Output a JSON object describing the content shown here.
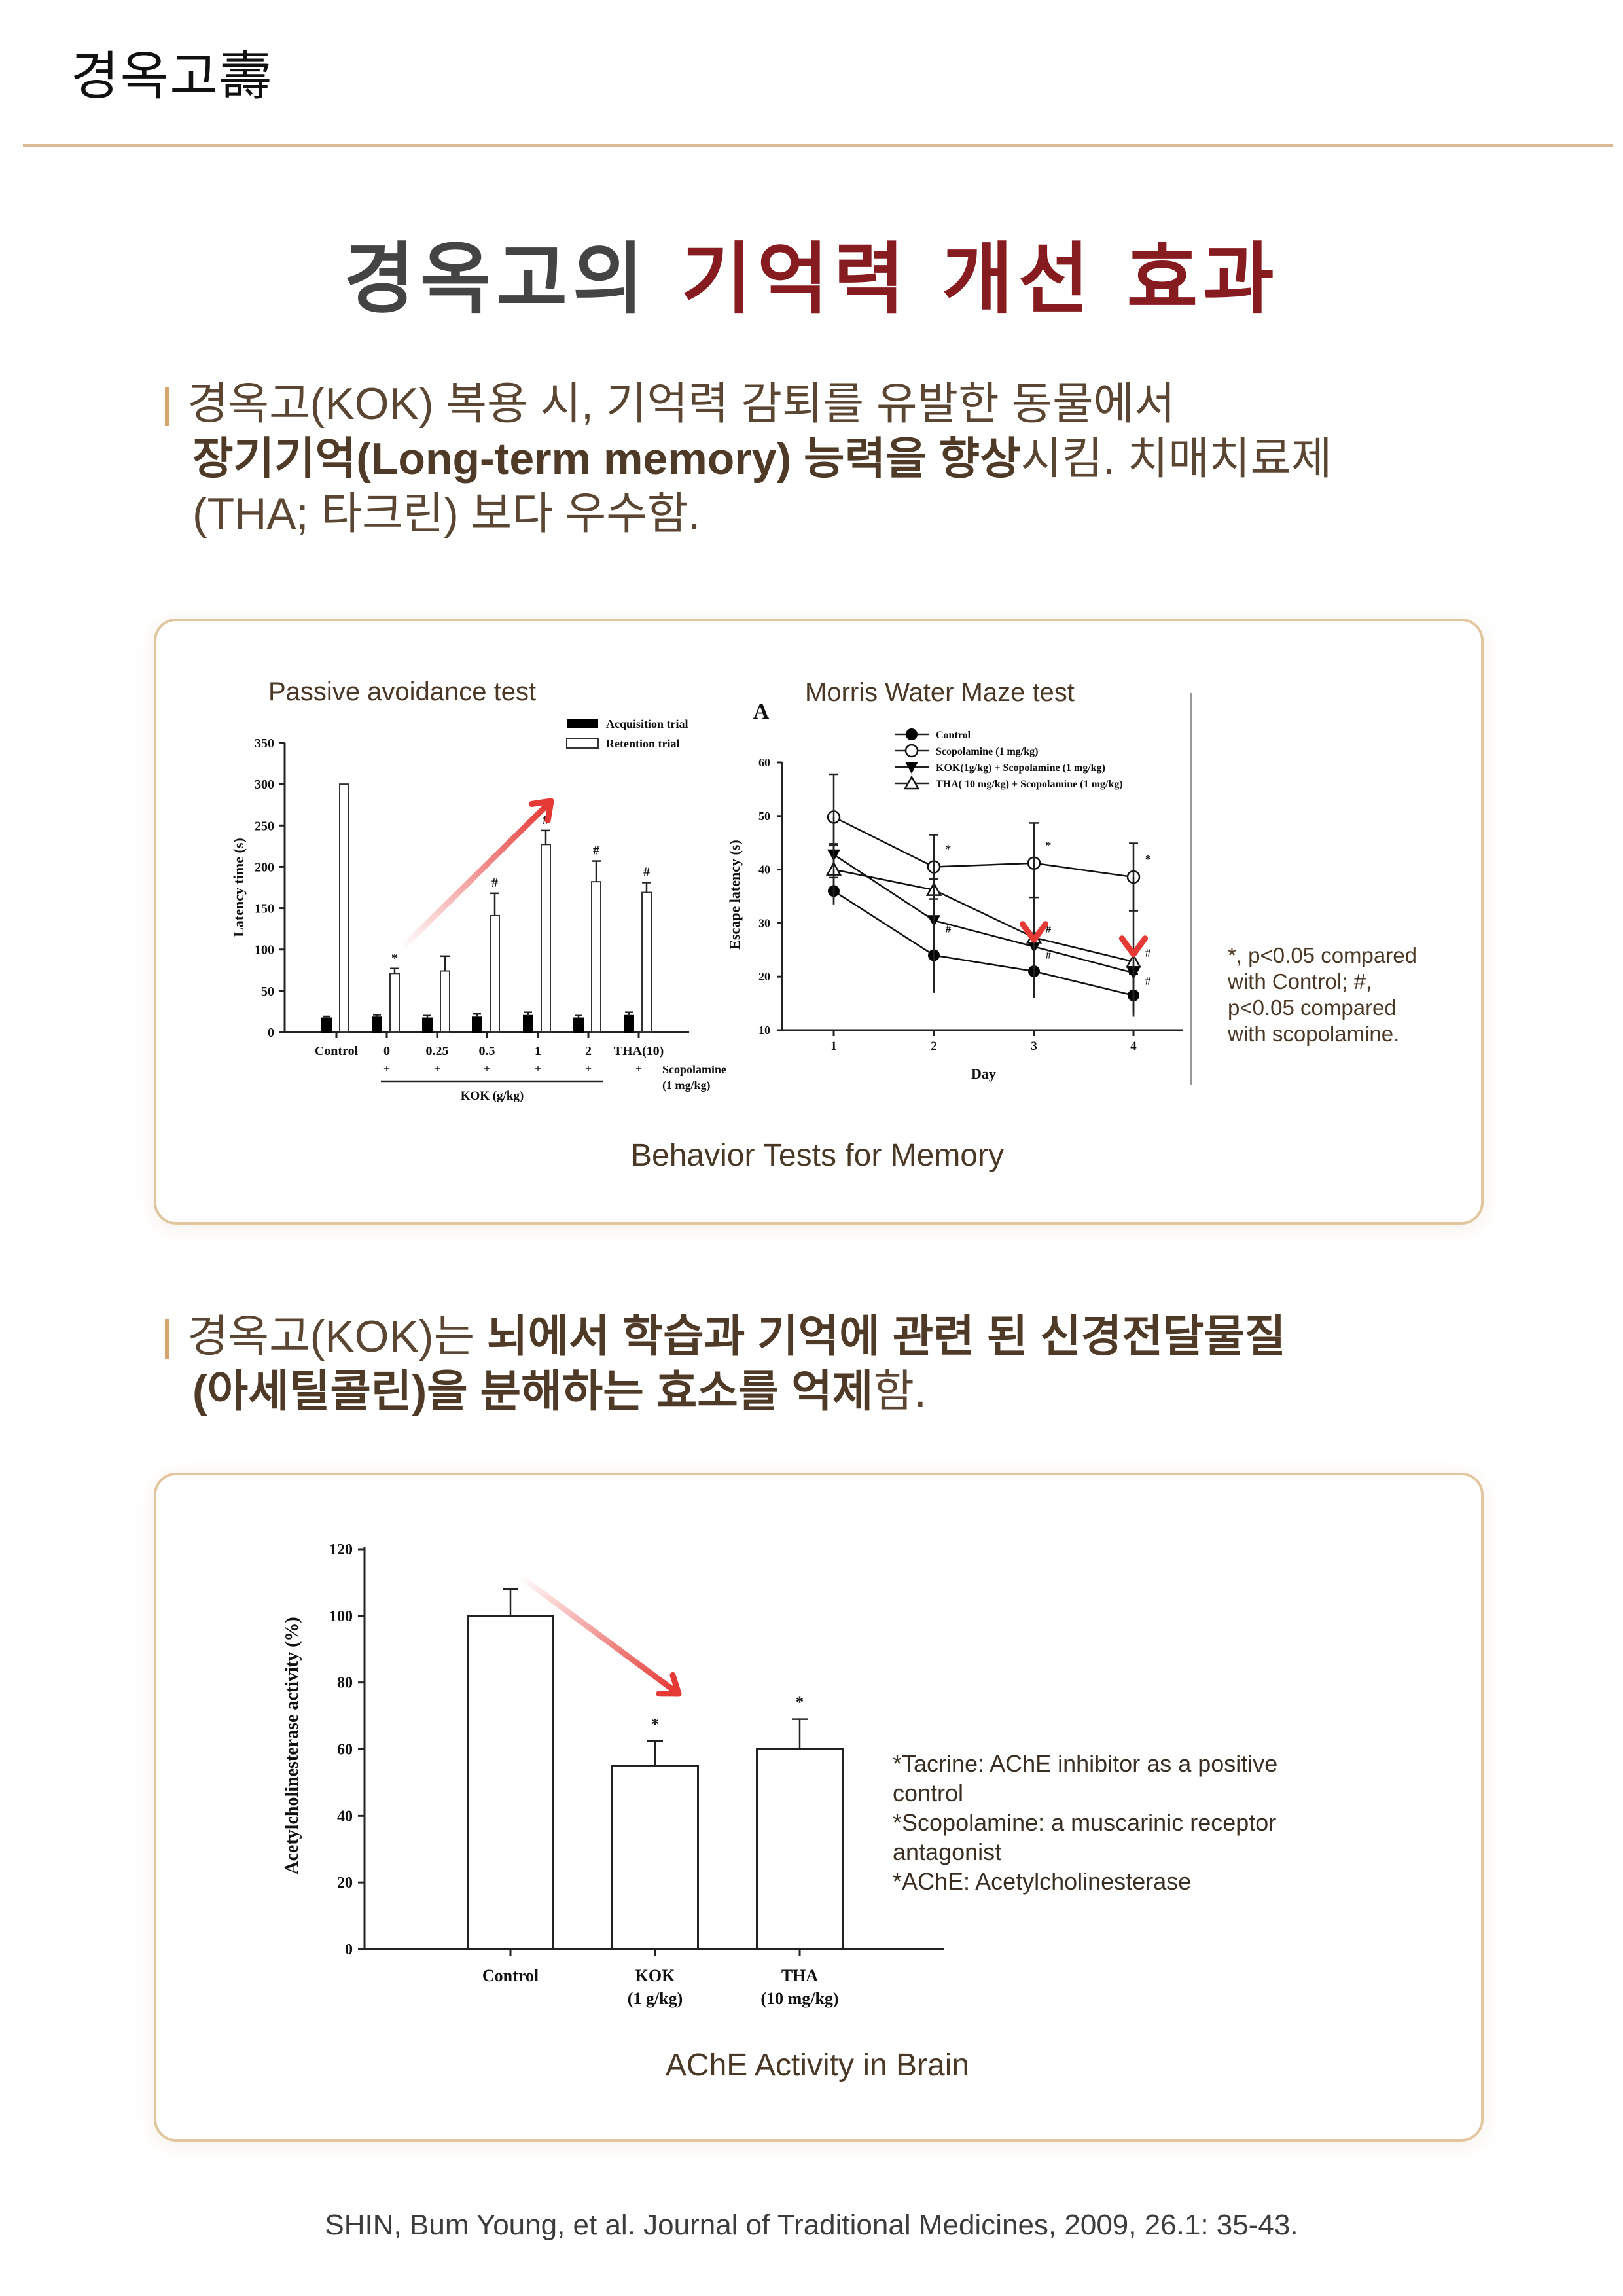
{
  "header": {
    "logo": "경옥고壽"
  },
  "title": {
    "part1": "경옥고의 ",
    "part2": "기억력 개선 효과",
    "accent_color": "#861b20"
  },
  "section1": {
    "line1": "경옥고(KOK) 복용 시, 기억력 감퇴를 유발한 동물에서",
    "line2_bold": "장기기억(Long-term memory) 능력을 향상",
    "line2_rest": "시킴. 치매치료제",
    "line3": "(THA; 타크린) 보다 우수함."
  },
  "section2": {
    "line1_normal": "경옥고(KOK)는 ",
    "line1_bold": "뇌에서 학습과 기억에 관련 된 신경전달물질",
    "line2_bold": "(아세틸콜린)을 분해하는 효소를 억제",
    "line2_rest": "함."
  },
  "box1": {
    "passive_title": "Passive avoidance test",
    "mwm_title": "Morris Water Maze test",
    "mwm_panel_letter": "A",
    "note": [
      "*, p<0.05 compared",
      "with Control; #,",
      "p<0.05 compared",
      "with scopolamine."
    ],
    "caption": "Behavior Tests for Memory"
  },
  "box2": {
    "notes": [
      "*Tacrine: AChE inhibitor as a positive",
      "control",
      "*Scopolamine: a muscarinic receptor",
      "antagonist",
      "*AChE: Acetylcholinesterase"
    ],
    "caption": "AChE Activity in Brain"
  },
  "citation": "SHIN, Bum Young, et al. Journal of Traditional Medicines, 2009, 26.1: 35-43.",
  "chart_data": [
    {
      "type": "bar",
      "title": "Passive avoidance test",
      "ylabel": "Latency time (s)",
      "xlabel": "KOK (g/kg)",
      "ylim": [
        0,
        350
      ],
      "yticks": [
        "0",
        "50",
        "100",
        "150",
        "200",
        "250",
        "300",
        "350"
      ],
      "categories": [
        "Control",
        "0",
        "0.25",
        "0.5",
        "1",
        "2",
        "THA(10)"
      ],
      "scopolamine_marks": [
        "",
        "+",
        "+",
        "+",
        "+",
        "+",
        "+"
      ],
      "scopolamine_label": [
        "Scopolamine",
        "(1 mg/kg)"
      ],
      "series": [
        {
          "name": "Acquisition trial",
          "fill": "#000000",
          "values": [
            17,
            18,
            17,
            18,
            20,
            17,
            20
          ],
          "errors": [
            2,
            3,
            3,
            4,
            4,
            3,
            4
          ]
        },
        {
          "name": "Retention trial",
          "fill": "#ffffff",
          "values": [
            300,
            71,
            74,
            141,
            227,
            182,
            169
          ],
          "errors": [
            0,
            6,
            18,
            27,
            17,
            25,
            12
          ],
          "significance": [
            "",
            "*",
            "",
            "#",
            "#",
            "#",
            "#"
          ]
        }
      ],
      "legend": "top-right"
    },
    {
      "type": "line",
      "title": "Morris Water Maze test",
      "ylabel": "Escape latency (s)",
      "xlabel": "Day",
      "ylim": [
        10,
        60
      ],
      "yticks": [
        "10",
        "20",
        "30",
        "40",
        "50",
        "60"
      ],
      "x": [
        1,
        2,
        3,
        4
      ],
      "series": [
        {
          "name": "Control",
          "marker": "circle-filled",
          "values": [
            36,
            24,
            21,
            16.5
          ],
          "errors": [
            2.5,
            7,
            5,
            4
          ],
          "significance": [
            "",
            "",
            "",
            ""
          ]
        },
        {
          "name": "Scopolamine (1 mg/kg)",
          "marker": "circle-open",
          "values": [
            49.8,
            40.5,
            41.2,
            38.6
          ],
          "errors": [
            8,
            6,
            7.5,
            6.3
          ],
          "significance": [
            "",
            "*",
            "*",
            "*"
          ]
        },
        {
          "name": "KOK(1g/kg) + Scopolamine (1 mg/kg)",
          "marker": "triangle-down-filled",
          "values": [
            42.8,
            30.5,
            25.6,
            20.7
          ],
          "errors": [
            2,
            4,
            2.3,
            2
          ],
          "significance": [
            "",
            "#",
            "#",
            "#"
          ]
        },
        {
          "name": "THA( 10 mg/kg) + Scopolamine (1 mg/kg)",
          "marker": "triangle-up-open",
          "values": [
            40,
            36.2,
            27.3,
            22.8
          ],
          "errors": [
            4.5,
            2,
            7.5,
            9.5
          ],
          "significance": [
            "",
            "",
            "#",
            "#"
          ]
        }
      ],
      "legend": "top"
    },
    {
      "type": "bar",
      "title": "AChE Activity in Brain",
      "ylabel": "Acetylcholinesterase activity (%)",
      "ylim": [
        0,
        120
      ],
      "yticks": [
        "0",
        "20",
        "40",
        "60",
        "80",
        "100",
        "120"
      ],
      "categories": [
        [
          "Control",
          ""
        ],
        [
          "KOK",
          "(1 g/kg)"
        ],
        [
          "THA",
          "(10 mg/kg)"
        ]
      ],
      "values": [
        100,
        55,
        60
      ],
      "errors": [
        8,
        7.5,
        9
      ],
      "significance": [
        "",
        "*",
        "*"
      ]
    }
  ]
}
